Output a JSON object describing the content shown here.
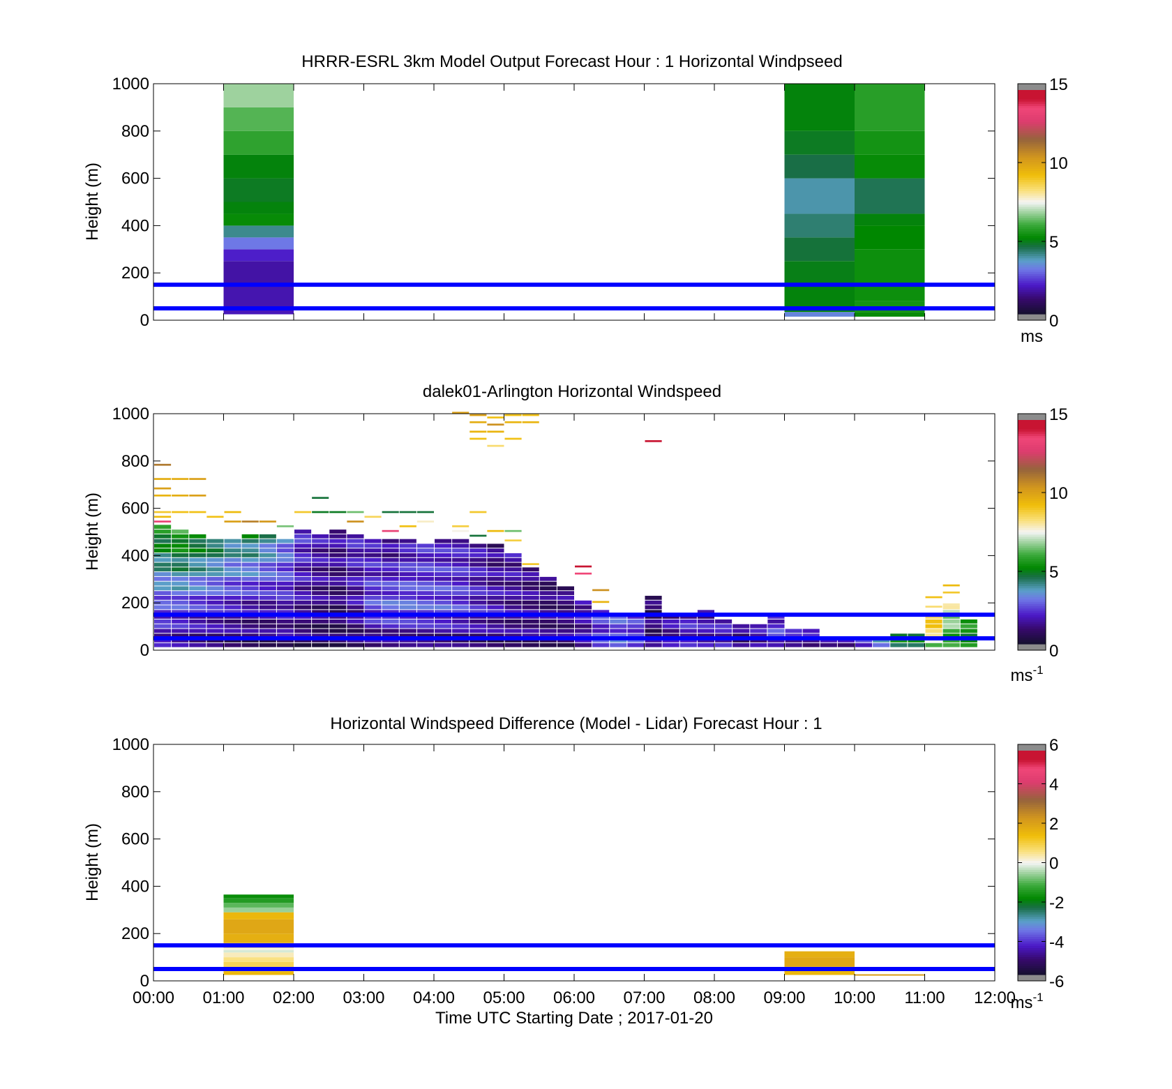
{
  "chart_data": [
    {
      "type": "heatmap",
      "title": "HRRR-ESRL 3km Model Output   Forecast Hour : 1 Horizontal Windpseed",
      "ylabel": "Height (m)",
      "ylim": [
        0,
        1000
      ],
      "xlim": [
        0,
        12
      ],
      "y_ticks": [
        "0",
        "200",
        "400",
        "600",
        "800",
        "1000"
      ],
      "colorbar": {
        "min": 0,
        "max": 15,
        "ticks": [
          "0",
          "5",
          "10",
          "15"
        ],
        "unit": "ms"
      },
      "reference_lines_m": [
        50,
        150
      ],
      "columns": [
        {
          "t0": 1,
          "t1": 2,
          "z0": 25,
          "cells": [
            {
              "z1": 50,
              "v": 1.8
            },
            {
              "z1": 150,
              "v": 1.7
            },
            {
              "z1": 250,
              "v": 1.6
            },
            {
              "z1": 300,
              "v": 2.0
            },
            {
              "z1": 350,
              "v": 3.0
            },
            {
              "z1": 400,
              "v": 4.0
            },
            {
              "z1": 450,
              "v": 5.2
            },
            {
              "z1": 500,
              "v": 5.0
            },
            {
              "z1": 600,
              "v": 4.8
            },
            {
              "z1": 700,
              "v": 5.0
            },
            {
              "z1": 800,
              "v": 5.8
            },
            {
              "z1": 900,
              "v": 6.2
            },
            {
              "z1": 1000,
              "v": 6.8
            }
          ]
        },
        {
          "t0": 9,
          "t1": 10,
          "z0": 15,
          "cells": [
            {
              "z1": 35,
              "v": 3.2
            },
            {
              "z1": 150,
              "v": 5.0
            },
            {
              "z1": 250,
              "v": 4.9
            },
            {
              "z1": 350,
              "v": 4.6
            },
            {
              "z1": 450,
              "v": 4.2
            },
            {
              "z1": 600,
              "v": 3.8
            },
            {
              "z1": 700,
              "v": 4.5
            },
            {
              "z1": 800,
              "v": 4.8
            },
            {
              "z1": 1000,
              "v": 5.0
            }
          ]
        },
        {
          "t0": 10,
          "t1": 11,
          "z0": 15,
          "cells": [
            {
              "z1": 35,
              "v": 5.2
            },
            {
              "z1": 80,
              "v": 5.4
            },
            {
              "z1": 300,
              "v": 5.3
            },
            {
              "z1": 400,
              "v": 5.1
            },
            {
              "z1": 450,
              "v": 5.0
            },
            {
              "z1": 600,
              "v": 4.4
            },
            {
              "z1": 700,
              "v": 5.2
            },
            {
              "z1": 800,
              "v": 5.4
            },
            {
              "z1": 1000,
              "v": 5.7
            }
          ]
        }
      ]
    },
    {
      "type": "heatmap",
      "title": "dalek01-Arlington  Horizontal Windspeed",
      "ylabel": "Height (m)",
      "ylim": [
        0,
        1000
      ],
      "xlim": [
        0,
        12
      ],
      "y_ticks": [
        "0",
        "200",
        "400",
        "600",
        "800",
        "1000"
      ],
      "colorbar": {
        "min": 0,
        "max": 15,
        "ticks": [
          "0",
          "5",
          "10",
          "15"
        ],
        "unit": "ms",
        "unit_exponent": "-1"
      },
      "reference_lines_m": [
        50,
        150
      ],
      "time_step_h": 0.25,
      "bin_m": 20,
      "columns": [
        {
          "t": 0.0,
          "top": 520,
          "low": 1.5,
          "mid": 2.5,
          "hi": 5.5
        },
        {
          "t": 0.25,
          "top": 500,
          "low": 1.2,
          "mid": 2.5,
          "hi": 5.8
        },
        {
          "t": 0.5,
          "top": 480,
          "low": 1.0,
          "mid": 2.2,
          "hi": 5.2
        },
        {
          "t": 0.75,
          "top": 470,
          "low": 0.9,
          "mid": 2.0,
          "hi": 4.8
        },
        {
          "t": 1.0,
          "top": 460,
          "low": 0.8,
          "mid": 1.8,
          "hi": 4.2
        },
        {
          "t": 1.25,
          "top": 480,
          "low": 0.8,
          "mid": 1.6,
          "hi": 4.6
        },
        {
          "t": 1.5,
          "top": 480,
          "low": 0.8,
          "mid": 1.6,
          "hi": 4.0
        },
        {
          "t": 1.75,
          "top": 470,
          "low": 1.0,
          "mid": 1.8,
          "hi": 3.2
        },
        {
          "t": 2.0,
          "top": 500,
          "low": 0.8,
          "mid": 1.5,
          "hi": 2.2
        },
        {
          "t": 2.25,
          "top": 490,
          "low": 0.6,
          "mid": 1.2,
          "hi": 1.8
        },
        {
          "t": 2.5,
          "top": 500,
          "low": 0.7,
          "mid": 1.0,
          "hi": 1.6
        },
        {
          "t": 2.75,
          "top": 480,
          "low": 0.8,
          "mid": 1.5,
          "hi": 2.0
        },
        {
          "t": 3.0,
          "top": 470,
          "low": 0.8,
          "mid": 2.5,
          "hi": 1.6
        },
        {
          "t": 3.25,
          "top": 460,
          "low": 0.8,
          "mid": 2.8,
          "hi": 1.2
        },
        {
          "t": 3.5,
          "top": 470,
          "low": 0.8,
          "mid": 2.8,
          "hi": 1.6
        },
        {
          "t": 3.75,
          "top": 450,
          "low": 0.8,
          "mid": 2.6,
          "hi": 2.0
        },
        {
          "t": 4.0,
          "top": 470,
          "low": 0.8,
          "mid": 2.6,
          "hi": 1.8
        },
        {
          "t": 4.25,
          "top": 470,
          "low": 0.8,
          "mid": 2.4,
          "hi": 1.8
        },
        {
          "t": 4.5,
          "top": 440,
          "low": 0.8,
          "mid": 2.0,
          "hi": 1.6
        },
        {
          "t": 4.75,
          "top": 440,
          "low": 0.8,
          "mid": 1.8,
          "hi": 1.2
        },
        {
          "t": 5.0,
          "top": 400,
          "low": 1.0,
          "mid": 1.4,
          "hi": 1.6
        },
        {
          "t": 5.25,
          "top": 340,
          "low": 1.0,
          "mid": 1.4,
          "hi": 1.2
        },
        {
          "t": 5.5,
          "top": 300,
          "low": 1.0,
          "mid": 1.2,
          "hi": 1.0
        },
        {
          "t": 5.75,
          "top": 260,
          "low": 1.0,
          "mid": 1.3,
          "hi": 1.2
        },
        {
          "t": 6.0,
          "top": 200,
          "low": 1.8,
          "mid": 1.6,
          "hi": 1.8
        },
        {
          "t": 6.25,
          "top": 160,
          "low": 2.8,
          "mid": 2.2,
          "hi": 2.4
        },
        {
          "t": 6.5,
          "top": 140,
          "low": 3.0,
          "mid": 2.6,
          "hi": 2.6
        },
        {
          "t": 6.75,
          "top": 140,
          "low": 2.0,
          "mid": 2.6,
          "hi": 2.0
        },
        {
          "t": 7.0,
          "top": 220,
          "low": 1.2,
          "mid": 1.0,
          "hi": 0.8
        },
        {
          "t": 7.25,
          "top": 150,
          "low": 1.5,
          "mid": 1.6,
          "hi": 1.4
        },
        {
          "t": 7.5,
          "top": 150,
          "low": 1.6,
          "mid": 2.0,
          "hi": 1.8
        },
        {
          "t": 7.75,
          "top": 160,
          "low": 1.4,
          "mid": 1.8,
          "hi": 1.6
        },
        {
          "t": 8.0,
          "top": 120,
          "low": 1.8,
          "mid": 1.8,
          "hi": 1.8
        },
        {
          "t": 8.25,
          "top": 100,
          "low": 1.2,
          "mid": 1.2,
          "hi": 1.2
        },
        {
          "t": 8.5,
          "top": 100,
          "low": 1.8,
          "mid": 1.6,
          "hi": 1.6
        },
        {
          "t": 8.75,
          "top": 140,
          "low": 1.8,
          "mid": 2.4,
          "hi": 2.0
        },
        {
          "t": 9.0,
          "top": 80,
          "low": 1.8,
          "mid": 1.8,
          "hi": 1.8
        },
        {
          "t": 9.25,
          "top": 80,
          "low": 1.6,
          "mid": 1.6,
          "hi": 1.6
        },
        {
          "t": 9.5,
          "top": 40,
          "low": 1.8,
          "mid": 1.8,
          "hi": 1.8
        },
        {
          "t": 9.75,
          "top": 40,
          "low": 1.6,
          "mid": 1.6,
          "hi": 1.6
        },
        {
          "t": 10.0,
          "top": 40,
          "low": 2.2,
          "mid": 2.2,
          "hi": 2.2
        },
        {
          "t": 10.25,
          "top": 40,
          "low": 2.8,
          "mid": 3.2,
          "hi": 3.2
        },
        {
          "t": 10.5,
          "top": 60,
          "low": 3.6,
          "mid": 4.8,
          "hi": 4.8
        },
        {
          "t": 10.75,
          "top": 60,
          "low": 3.4,
          "mid": 4.6,
          "hi": 5.0
        },
        {
          "t": 11.0,
          "top": 140,
          "low": 4.8,
          "mid": 8.6,
          "hi": 9.0
        },
        {
          "t": 11.25,
          "top": 180,
          "low": 5.4,
          "mid": 6.0,
          "hi": 7.6
        },
        {
          "t": 11.5,
          "top": 120,
          "low": 5.0,
          "mid": 5.2,
          "hi": 5.4
        }
      ],
      "extra_cells": [
        {
          "t": 0.0,
          "z": 780,
          "v": 11.2
        },
        {
          "t": 0.0,
          "z": 720,
          "v": 9.8
        },
        {
          "t": 0.25,
          "z": 720,
          "v": 9.8
        },
        {
          "t": 0.5,
          "z": 720,
          "v": 10.2
        },
        {
          "t": 0.0,
          "z": 680,
          "v": 10.2
        },
        {
          "t": 0.0,
          "z": 650,
          "v": 9.6
        },
        {
          "t": 0.25,
          "z": 650,
          "v": 9.8
        },
        {
          "t": 0.5,
          "z": 650,
          "v": 10.2
        },
        {
          "t": 0.0,
          "z": 580,
          "v": 9.0
        },
        {
          "t": 0.0,
          "z": 560,
          "v": 9.4
        },
        {
          "t": 0.0,
          "z": 540,
          "v": 13.5
        },
        {
          "t": 0.25,
          "z": 580,
          "v": 9.2
        },
        {
          "t": 0.5,
          "z": 580,
          "v": 9.2
        },
        {
          "t": 0.75,
          "z": 560,
          "v": 9.2
        },
        {
          "t": 1.0,
          "z": 580,
          "v": 9.4
        },
        {
          "t": 1.0,
          "z": 540,
          "v": 10.2
        },
        {
          "t": 1.25,
          "z": 540,
          "v": 11.0
        },
        {
          "t": 1.5,
          "z": 540,
          "v": 10.4
        },
        {
          "t": 1.75,
          "z": 520,
          "v": 6.5
        },
        {
          "t": 2.0,
          "z": 580,
          "v": 9.0
        },
        {
          "t": 2.25,
          "z": 640,
          "v": 4.6
        },
        {
          "t": 2.25,
          "z": 580,
          "v": 4.8
        },
        {
          "t": 2.5,
          "z": 580,
          "v": 4.8
        },
        {
          "t": 2.75,
          "z": 580,
          "v": 6.4
        },
        {
          "t": 2.75,
          "z": 540,
          "v": 10.6
        },
        {
          "t": 3.0,
          "z": 560,
          "v": 8.6
        },
        {
          "t": 3.25,
          "z": 580,
          "v": 4.6
        },
        {
          "t": 3.5,
          "z": 580,
          "v": 4.6
        },
        {
          "t": 3.75,
          "z": 580,
          "v": 4.6
        },
        {
          "t": 3.75,
          "z": 540,
          "v": 7.8
        },
        {
          "t": 3.25,
          "z": 500,
          "v": 13.5
        },
        {
          "t": 3.5,
          "z": 520,
          "v": 9.2
        },
        {
          "t": 4.25,
          "z": 520,
          "v": 8.8
        },
        {
          "t": 4.25,
          "z": 500,
          "v": 7.6
        },
        {
          "t": 4.5,
          "z": 580,
          "v": 9.0
        },
        {
          "t": 4.5,
          "z": 480,
          "v": 4.6
        },
        {
          "t": 4.75,
          "z": 500,
          "v": 9.4
        },
        {
          "t": 5.0,
          "z": 500,
          "v": 6.4
        },
        {
          "t": 5.0,
          "z": 460,
          "v": 8.8
        },
        {
          "t": 5.25,
          "z": 360,
          "v": 9.0
        },
        {
          "t": 4.25,
          "z": 1000,
          "v": 10.2
        },
        {
          "t": 4.5,
          "z": 990,
          "v": 10.2
        },
        {
          "t": 4.5,
          "z": 960,
          "v": 9.8
        },
        {
          "t": 4.5,
          "z": 920,
          "v": 9.6
        },
        {
          "t": 4.5,
          "z": 890,
          "v": 9.2
        },
        {
          "t": 4.75,
          "z": 980,
          "v": 9.2
        },
        {
          "t": 4.75,
          "z": 950,
          "v": 10.6
        },
        {
          "t": 4.75,
          "z": 920,
          "v": 9.6
        },
        {
          "t": 4.75,
          "z": 860,
          "v": 8.4
        },
        {
          "t": 5.0,
          "z": 990,
          "v": 9.2
        },
        {
          "t": 5.0,
          "z": 960,
          "v": 9.6
        },
        {
          "t": 5.0,
          "z": 890,
          "v": 9.2
        },
        {
          "t": 5.25,
          "z": 990,
          "v": 9.2
        },
        {
          "t": 5.25,
          "z": 960,
          "v": 9.6
        },
        {
          "t": 7.0,
          "z": 880,
          "v": 15.2
        },
        {
          "t": 6.0,
          "z": 350,
          "v": 15.2
        },
        {
          "t": 6.0,
          "z": 320,
          "v": 13.8
        },
        {
          "t": 6.25,
          "z": 250,
          "v": 10.6
        },
        {
          "t": 6.25,
          "z": 200,
          "v": 9.6
        },
        {
          "t": 11.25,
          "z": 270,
          "v": 9.4
        },
        {
          "t": 11.25,
          "z": 240,
          "v": 9.0
        },
        {
          "t": 11.0,
          "z": 220,
          "v": 9.2
        },
        {
          "t": 11.0,
          "z": 180,
          "v": 8.4
        },
        {
          "t": 11.25,
          "z": 190,
          "v": 8.0
        }
      ]
    },
    {
      "type": "heatmap",
      "title": "Horizontal Windspeed Difference (Model - Lidar) Forecast Hour : 1",
      "xlabel": "Time UTC  Starting Date ; 2017-01-20",
      "ylabel": "Height (m)",
      "ylim": [
        0,
        1000
      ],
      "xlim": [
        0,
        12
      ],
      "x_ticks": [
        "00:00",
        "01:00",
        "02:00",
        "03:00",
        "04:00",
        "05:00",
        "06:00",
        "07:00",
        "08:00",
        "09:00",
        "10:00",
        "11:00",
        "12:00"
      ],
      "y_ticks": [
        "0",
        "200",
        "400",
        "600",
        "800",
        "1000"
      ],
      "colorbar": {
        "min": -6,
        "max": 6,
        "ticks": [
          "-6",
          "-4",
          "-2",
          "0",
          "2",
          "4",
          "6"
        ],
        "unit": "ms",
        "unit_exponent": "-1"
      },
      "reference_lines_m": [
        50,
        150
      ],
      "columns": [
        {
          "t0": 1,
          "t1": 2,
          "z0": 25,
          "cells": [
            {
              "z1": 40,
              "v": 1.6
            },
            {
              "z1": 60,
              "v": 1.2
            },
            {
              "z1": 80,
              "v": 0.9
            },
            {
              "z1": 100,
              "v": 0.6
            },
            {
              "z1": 120,
              "v": 0.3
            },
            {
              "z1": 130,
              "v": -0.2
            },
            {
              "z1": 140,
              "v": 0.1
            },
            {
              "z1": 160,
              "v": 1.0
            },
            {
              "z1": 200,
              "v": 1.8
            },
            {
              "z1": 260,
              "v": 2.0
            },
            {
              "z1": 290,
              "v": 1.6
            },
            {
              "z1": 310,
              "v": -0.6
            },
            {
              "z1": 330,
              "v": -1.0
            },
            {
              "z1": 350,
              "v": -1.5
            },
            {
              "z1": 365,
              "v": -1.8
            }
          ]
        },
        {
          "t0": 9,
          "t1": 10,
          "z0": 25,
          "cells": [
            {
              "z1": 60,
              "v": 1.6
            },
            {
              "z1": 100,
              "v": 2.0
            },
            {
              "z1": 125,
              "v": 1.8
            }
          ]
        },
        {
          "t0": 10,
          "t1": 11,
          "z0": 22,
          "cells": [
            {
              "z1": 28,
              "v": 2.2
            }
          ]
        }
      ]
    }
  ]
}
